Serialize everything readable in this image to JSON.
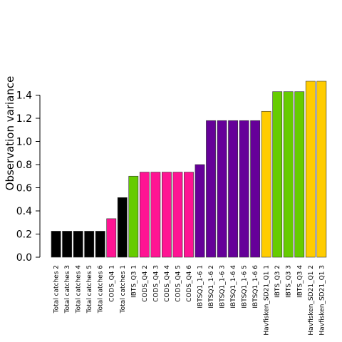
{
  "chart_data": {
    "type": "bar",
    "title": "",
    "xlabel": "",
    "ylabel": "Observation variance",
    "ylim": [
      0,
      1.52
    ],
    "yticks": [
      "0.0",
      "0.2",
      "0.4",
      "0.6",
      "0.8",
      "1.0",
      "1.2",
      "1.4"
    ],
    "grid": false,
    "legend": "none",
    "categories": [
      "Total catches 2",
      "Total catches 3",
      "Total catches 4",
      "Total catches 5",
      "Total catches 6",
      "CODS_Q4 1",
      "Total catches 1",
      "IBTS_Q3 1",
      "CODS_Q4 2",
      "CODS_Q4 3",
      "CODS_Q4 4",
      "CODS_Q4 5",
      "CODS_Q4 6",
      "IBTSQ1_1-6 1",
      "IBTSQ1_1-6 2",
      "IBTSQ1_1-6 3",
      "IBTSQ1_1-6 4",
      "IBTSQ1_1-6 5",
      "IBTSQ1_1-6 6",
      "Havfisken_SD21_Q1 1",
      "IBTS_Q3 2",
      "IBTS_Q3 3",
      "IBTS_Q3 4",
      "Havfisken_SD21_Q1 2",
      "Havfisken_SD21_Q1 3"
    ],
    "values": [
      0.225,
      0.225,
      0.225,
      0.225,
      0.225,
      0.333,
      0.515,
      0.7,
      0.735,
      0.735,
      0.735,
      0.735,
      0.735,
      0.8,
      1.18,
      1.18,
      1.18,
      1.18,
      1.18,
      1.26,
      1.43,
      1.43,
      1.43,
      1.52,
      1.52
    ],
    "colors": [
      "#000000",
      "#000000",
      "#000000",
      "#000000",
      "#000000",
      "#ff1493",
      "#000000",
      "#66cc00",
      "#ff1493",
      "#ff1493",
      "#ff1493",
      "#ff1493",
      "#ff1493",
      "#660099",
      "#660099",
      "#660099",
      "#660099",
      "#660099",
      "#660099",
      "#ffcc00",
      "#66cc00",
      "#66cc00",
      "#66cc00",
      "#ffcc00",
      "#ffcc00"
    ]
  }
}
